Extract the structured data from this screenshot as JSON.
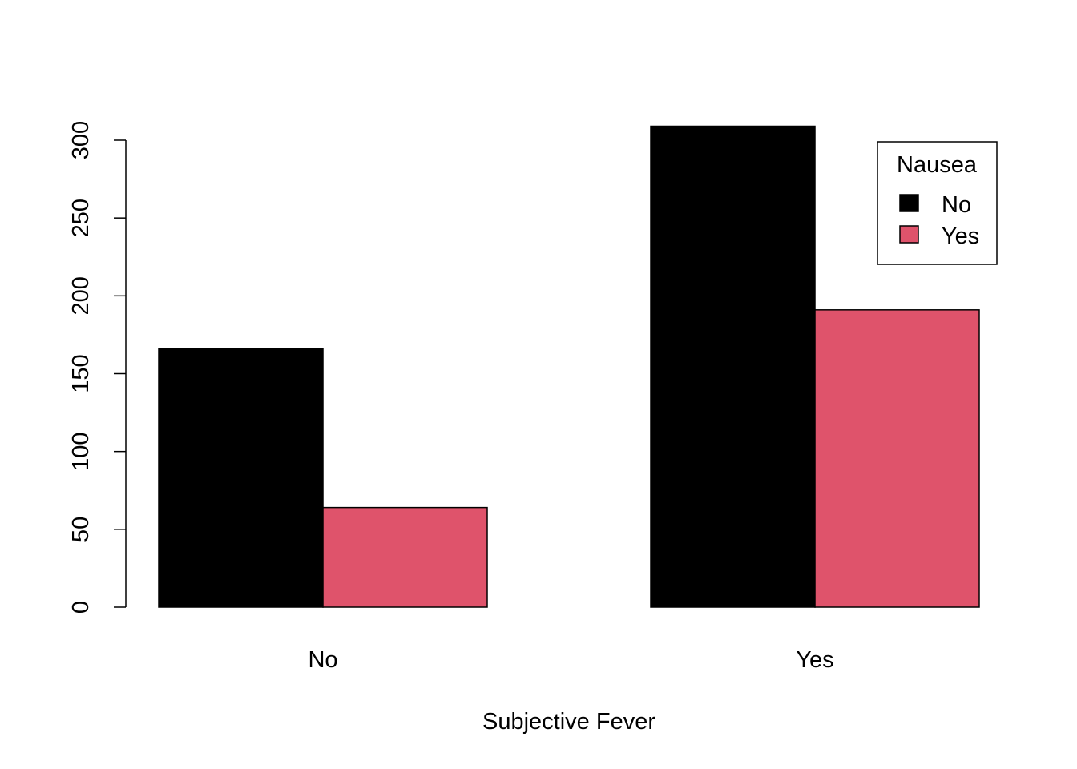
{
  "chart_data": {
    "type": "bar",
    "mode": "grouped",
    "xlabel": "Subjective Fever",
    "ylabel": "",
    "categories": [
      "No",
      "Yes"
    ],
    "series": [
      {
        "name": "No",
        "values": [
          166,
          309
        ],
        "color": "#000000"
      },
      {
        "name": "Yes",
        "values": [
          64,
          191
        ],
        "color": "#DF536B"
      }
    ],
    "ylim": [
      0,
      300
    ],
    "yticks": [
      0,
      50,
      100,
      150,
      200,
      250,
      300
    ],
    "grid": false,
    "legend": {
      "title": "Nausea",
      "placement": "top-right"
    }
  }
}
